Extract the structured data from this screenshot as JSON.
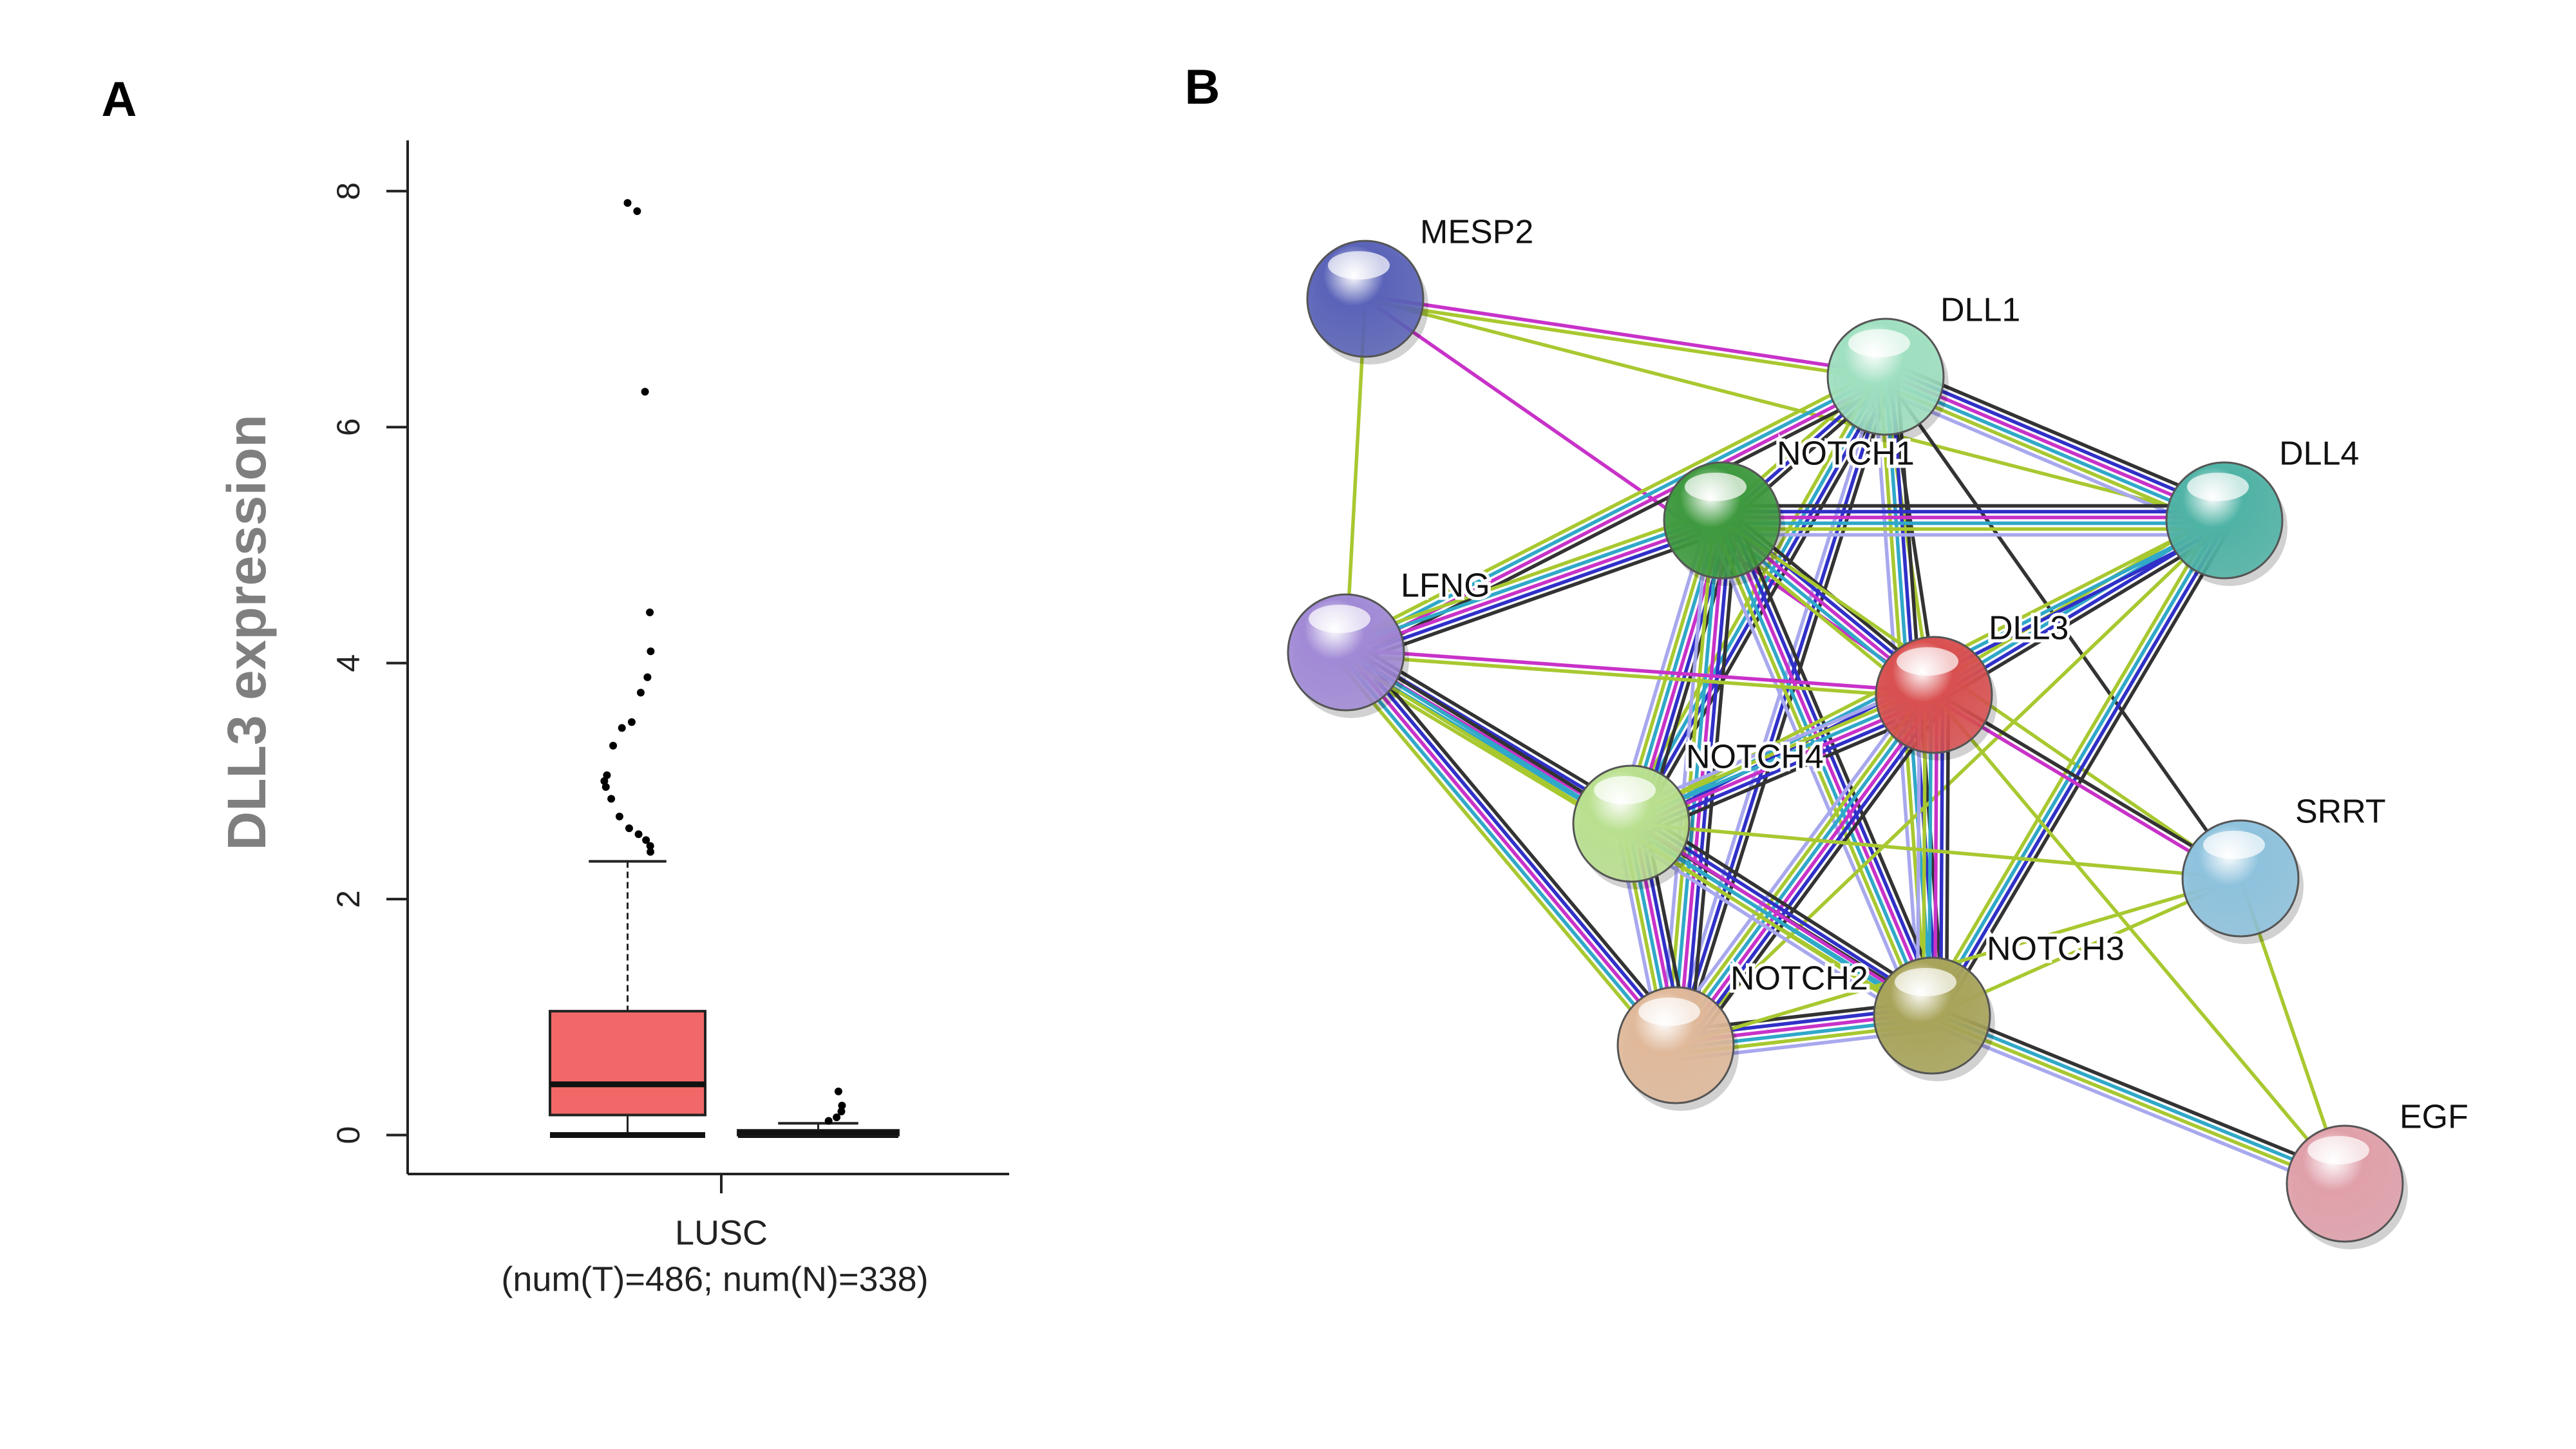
{
  "chart_data": {
    "type": "box",
    "panel_label": "A",
    "ylabel": "DLL3 expression",
    "categories": [
      "LUSC"
    ],
    "category_note": "(num(T)=486; num(N)=338)",
    "ylim": [
      -0.33,
      8.43
    ],
    "yticks": [
      0,
      2,
      4,
      6,
      8
    ],
    "groups": [
      {
        "color": "#f26868",
        "whisker_low": 0,
        "q1": 0.17,
        "median": 0.43,
        "q3": 1.05,
        "whisker_high": 2.32,
        "outliers": [
          7.9,
          7.83,
          6.3,
          4.43,
          4.1,
          3.88,
          3.75,
          3.5,
          3.45,
          3.3,
          3.05,
          3.0,
          2.95,
          2.85,
          2.7,
          2.6,
          2.55,
          2.5,
          2.45,
          2.4
        ]
      },
      {
        "color": "#f26868",
        "whisker_low": 0,
        "q1": 0.0,
        "median": 0.02,
        "q3": 0.04,
        "whisker_high": 0.1,
        "outliers": [
          0.37,
          0.25,
          0.2,
          0.15,
          0.12
        ]
      }
    ]
  },
  "network": {
    "panel_label": "B",
    "edge_colors": {
      "k": "#333333",
      "b": "#3030c8",
      "m": "#c832c8",
      "c": "#30a8c8",
      "y": "#a8c830",
      "l": "#a8a8ee"
    },
    "nodes": [
      {
        "label": "MESP2",
        "color": "#5a63b8"
      },
      {
        "label": "DLL1",
        "color": "#9fe0c0"
      },
      {
        "label": "NOTCH1",
        "color": "#3f9a3f"
      },
      {
        "label": "DLL4",
        "color": "#4fb3a5"
      },
      {
        "label": "LFNG",
        "color": "#a18ad6"
      },
      {
        "label": "DLL3",
        "color": "#d95050"
      },
      {
        "label": "NOTCH4",
        "color": "#b9e08f"
      },
      {
        "label": "SRRT",
        "color": "#8ec2dd"
      },
      {
        "label": "NOTCH2",
        "color": "#e0b99a"
      },
      {
        "label": "NOTCH3",
        "color": "#a8a45a"
      },
      {
        "label": "EGF",
        "color": "#e0a0aa"
      }
    ],
    "edges": [
      [
        0,
        1,
        "my"
      ],
      [
        0,
        5,
        "m"
      ],
      [
        0,
        3,
        "y"
      ],
      [
        0,
        4,
        "y"
      ],
      [
        1,
        2,
        "kby"
      ],
      [
        1,
        3,
        "kbmcyl"
      ],
      [
        1,
        4,
        "kmcy"
      ],
      [
        1,
        5,
        "ky"
      ],
      [
        1,
        6,
        "kbcy"
      ],
      [
        1,
        8,
        "kbl"
      ],
      [
        1,
        9,
        "kbcyl"
      ],
      [
        1,
        7,
        "k"
      ],
      [
        2,
        3,
        "kbmcyl"
      ],
      [
        2,
        4,
        "kbmcy"
      ],
      [
        2,
        5,
        "kbmcy"
      ],
      [
        2,
        6,
        "kbmcyl"
      ],
      [
        2,
        8,
        "kbmcyl"
      ],
      [
        2,
        9,
        "kbmcyl"
      ],
      [
        2,
        7,
        "y"
      ],
      [
        3,
        5,
        "kbcy"
      ],
      [
        3,
        6,
        "bcy"
      ],
      [
        3,
        8,
        "y"
      ],
      [
        3,
        9,
        "kbcy"
      ],
      [
        4,
        5,
        "my"
      ],
      [
        4,
        6,
        "kbmcy"
      ],
      [
        4,
        8,
        "kbmcy"
      ],
      [
        4,
        9,
        "kcy"
      ],
      [
        5,
        6,
        "kbmcyl"
      ],
      [
        5,
        8,
        "kbmcyl"
      ],
      [
        5,
        9,
        "kbmcyl"
      ],
      [
        5,
        7,
        "km"
      ],
      [
        5,
        10,
        "y"
      ],
      [
        6,
        8,
        "kbmcyl"
      ],
      [
        6,
        9,
        "kbmcyl"
      ],
      [
        6,
        7,
        "y"
      ],
      [
        8,
        9,
        "kbmcyl"
      ],
      [
        8,
        7,
        "y"
      ],
      [
        9,
        7,
        "y"
      ],
      [
        9,
        10,
        "kcyl"
      ],
      [
        7,
        10,
        "y"
      ]
    ]
  }
}
